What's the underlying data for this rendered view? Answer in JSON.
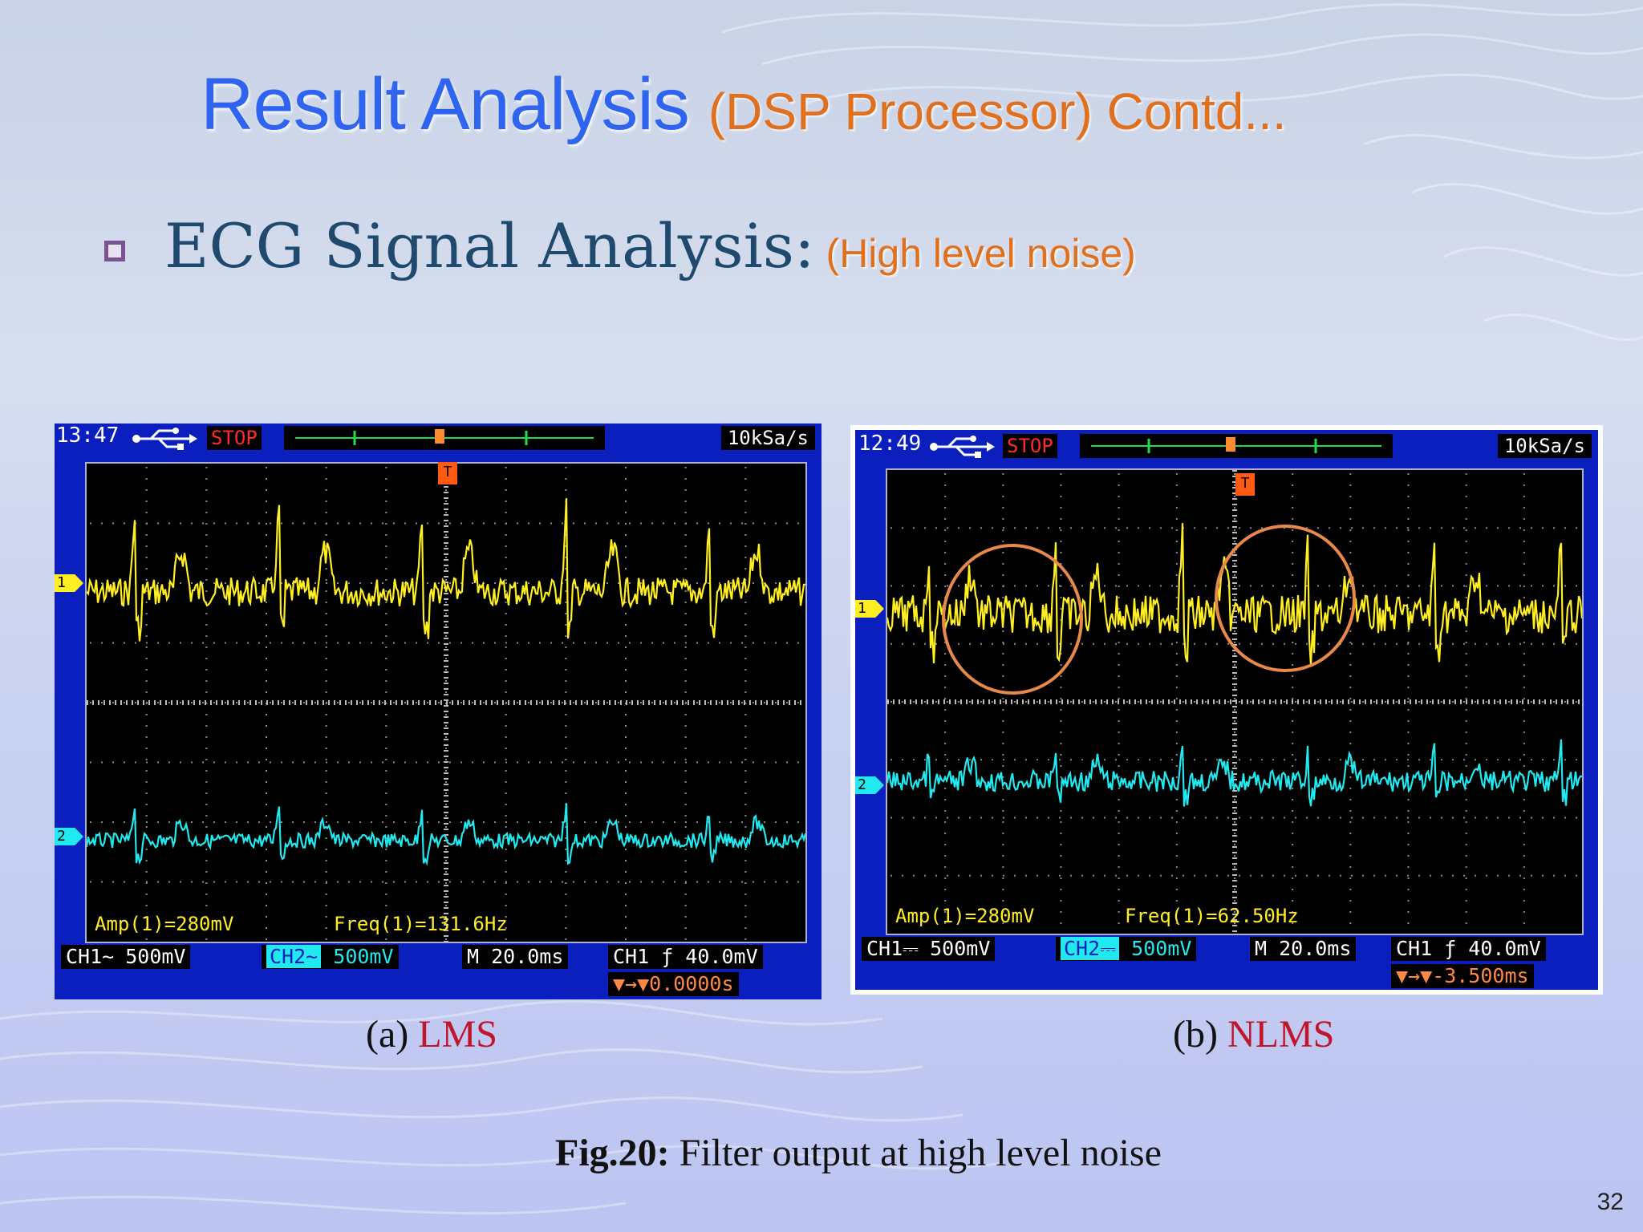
{
  "slide": {
    "title": "Result Analysis",
    "title_sub": "(DSP Processor) Contd...",
    "heading": "ECG Signal Analysis:",
    "heading_note": "(High level noise)",
    "page_number": "32",
    "figure_label": "Fig.20:",
    "figure_text": " Filter output at high level noise",
    "colors": {
      "title": "#2f64f0",
      "accent": "#e0701e",
      "heading": "#1f4a6e",
      "caption_highlight": "#c0152a"
    }
  },
  "scopes": [
    {
      "caption_prefix": "(a) ",
      "caption_method": "LMS",
      "time": "13:47",
      "status": "STOP",
      "sample_rate": "10kSa/s",
      "usb_icon": "usb-icon",
      "trigger_marker": "T",
      "meas_amp": "Amp(1)=280mV",
      "meas_freq": "Freq(1)=131.6Hz",
      "ch1_label": "CH1~",
      "ch1_scale": "500mV",
      "ch2_label": "CH2~",
      "ch2_scale": "500mV",
      "timebase": "M 20.0ms",
      "trigger_level": "CH1 ƒ 40.0mV",
      "trigger_delay": "▼→▼0.0000s",
      "ch1_marker": "1",
      "ch2_marker": "2"
    },
    {
      "caption_prefix": "(b) ",
      "caption_method": "NLMS",
      "time": "12:49",
      "status": "STOP",
      "sample_rate": "10kSa/s",
      "usb_icon": "usb-icon",
      "trigger_marker": "T",
      "meas_amp": "Amp(1)=280mV",
      "meas_freq": "Freq(1)=62.50Hz",
      "ch1_label": "CH1⎓",
      "ch1_scale": "500mV",
      "ch2_label": "CH2⎓",
      "ch2_scale": "500mV",
      "timebase": "M 20.0ms",
      "trigger_level": "CH1 ƒ 40.0mV",
      "trigger_delay": "▼→▼-3.500ms",
      "ch1_marker": "1",
      "ch2_marker": "2",
      "highlight_circles": 2,
      "highlight_color": "#e8894a"
    }
  ]
}
